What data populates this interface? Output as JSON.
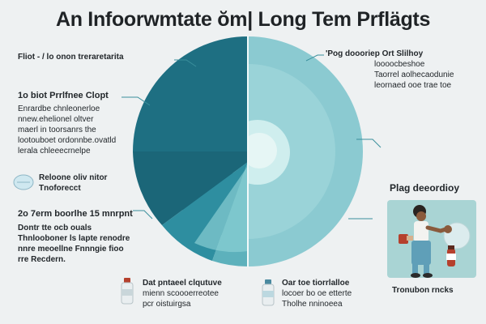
{
  "title": "An Infoorwmtate ŏm| Long Tem Prflägts",
  "left": {
    "header": "Fliot  - / lo onon treraretarita",
    "section1_title": "1o biot  Prrlfnee  Clopt",
    "section1_lines": [
      "Enrardbe chnleonerloe",
      "nnew.ehelionel oltver",
      "maerl in toorsanrs the",
      "lootouboet ordonnbe.ovatld",
      "lerala chleeecrnelpe"
    ],
    "pill_note_lines": [
      "Reloone oliv nitor",
      "Tnoforecct"
    ],
    "section2_title": "2o  7erm boorlhe 15 mnrpnt",
    "section2_lines": [
      "Dontr tte ocb ouals",
      "Thnlooboner ls lapte renodre",
      "nnre meoellne Fnnngie fioo",
      "rre Recdern."
    ]
  },
  "right": {
    "header_lines": [
      "'Pog doooriep Ort Slilhoy",
      "loooocbeshoe",
      "Taorrel aolhecaodunie",
      "leornaed ooe trae toe"
    ],
    "card_title": "Plag deeordioy",
    "card_caption": "Tronubon rncks"
  },
  "bottom": {
    "left_lines": [
      "Dat  pntaeel clqutuve",
      "mienn scoooerreotee",
      "pcr oistuirgsa"
    ],
    "right_lines": [
      "Oar  toe tiorrlalloe",
      "locoer bo oe etterte",
      "Tholhe nninoeea"
    ]
  },
  "colors": {
    "background": "#eef1f2",
    "dark_teal": "#1e6f82",
    "mid_teal": "#2e8ea0",
    "light_teal": "#7fc4cc",
    "pale_teal": "#b9e0e2",
    "accent_red": "#b5402d"
  }
}
